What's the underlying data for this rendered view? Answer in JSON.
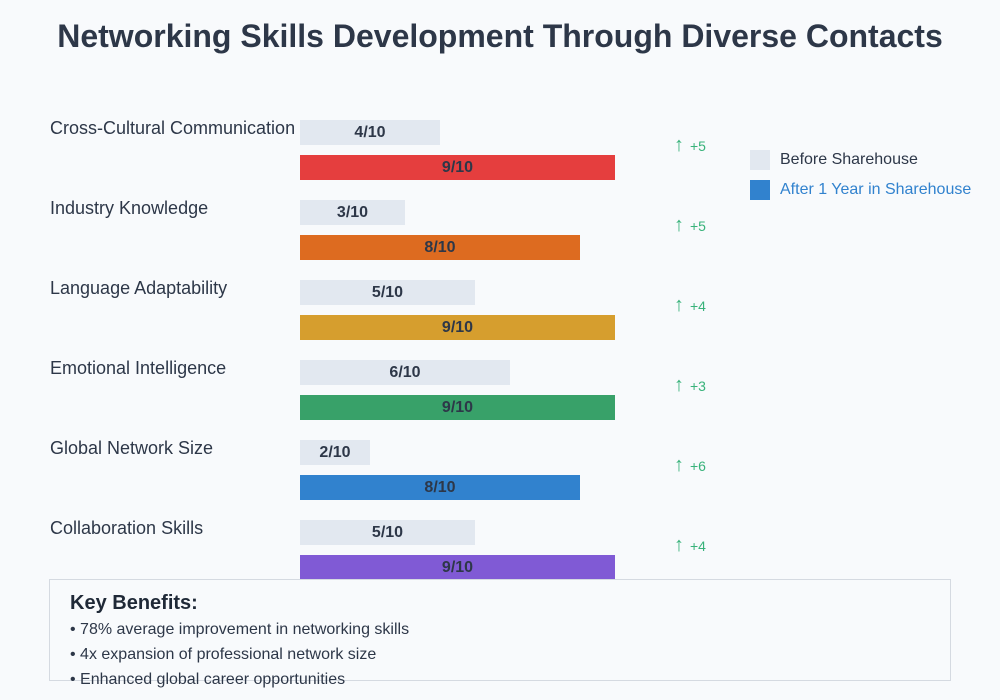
{
  "title": "Networking Skills Development Through Diverse Contacts",
  "chart_data": {
    "type": "bar",
    "orientation": "horizontal",
    "title": "Networking Skills Development Through Diverse Contacts",
    "categories": [
      "Cross-Cultural Communication",
      "Industry Knowledge",
      "Language Adaptability",
      "Emotional Intelligence",
      "Global Network Size",
      "Collaboration Skills"
    ],
    "series": [
      {
        "name": "Before Sharehouse",
        "values": [
          4,
          3,
          5,
          6,
          2,
          5
        ],
        "color": "#e2e8f0"
      },
      {
        "name": "After 1 Year in Sharehouse",
        "values": [
          9,
          8,
          9,
          9,
          8,
          9
        ],
        "colors": [
          "#e53e3e",
          "#dd6b20",
          "#d69e2e",
          "#38a169",
          "#3182ce",
          "#805ad5"
        ]
      }
    ],
    "improvements": [
      "+5",
      "+5",
      "+4",
      "+3",
      "+6",
      "+4"
    ],
    "xlim": [
      0,
      10
    ],
    "legend_position": "right",
    "grid": false
  },
  "skills": [
    {
      "label": "Cross-Cultural Communication",
      "before": 4,
      "before_text": "4/10",
      "after": 9,
      "after_text": "9/10",
      "color": "#e53e3e",
      "delta": "+5"
    },
    {
      "label": "Industry Knowledge",
      "before": 3,
      "before_text": "3/10",
      "after": 8,
      "after_text": "8/10",
      "color": "#dd6b20",
      "delta": "+5"
    },
    {
      "label": "Language Adaptability",
      "before": 5,
      "before_text": "5/10",
      "after": 9,
      "after_text": "9/10",
      "color": "#d69e2e",
      "delta": "+4"
    },
    {
      "label": "Emotional Intelligence",
      "before": 6,
      "before_text": "6/10",
      "after": 9,
      "after_text": "9/10",
      "color": "#38a169",
      "delta": "+3"
    },
    {
      "label": "Global Network Size",
      "before": 2,
      "before_text": "2/10",
      "after": 8,
      "after_text": "8/10",
      "color": "#3182ce",
      "delta": "+6"
    },
    {
      "label": "Collaboration Skills",
      "before": 5,
      "before_text": "5/10",
      "after": 9,
      "after_text": "9/10",
      "color": "#805ad5",
      "delta": "+4"
    }
  ],
  "arrow_glyph": "↑",
  "legend": [
    {
      "label": "Before Sharehouse",
      "color": "#e2e8f0",
      "text_color": "#2d3748"
    },
    {
      "label": "After 1 Year in Sharehouse",
      "color": "#3182ce",
      "text_color": "#3182ce"
    }
  ],
  "benefits": {
    "title": "Key Benefits:",
    "items": [
      "• 78% average improvement in networking skills",
      "• 4x expansion of professional network size",
      "• Enhanced global career opportunities"
    ]
  }
}
